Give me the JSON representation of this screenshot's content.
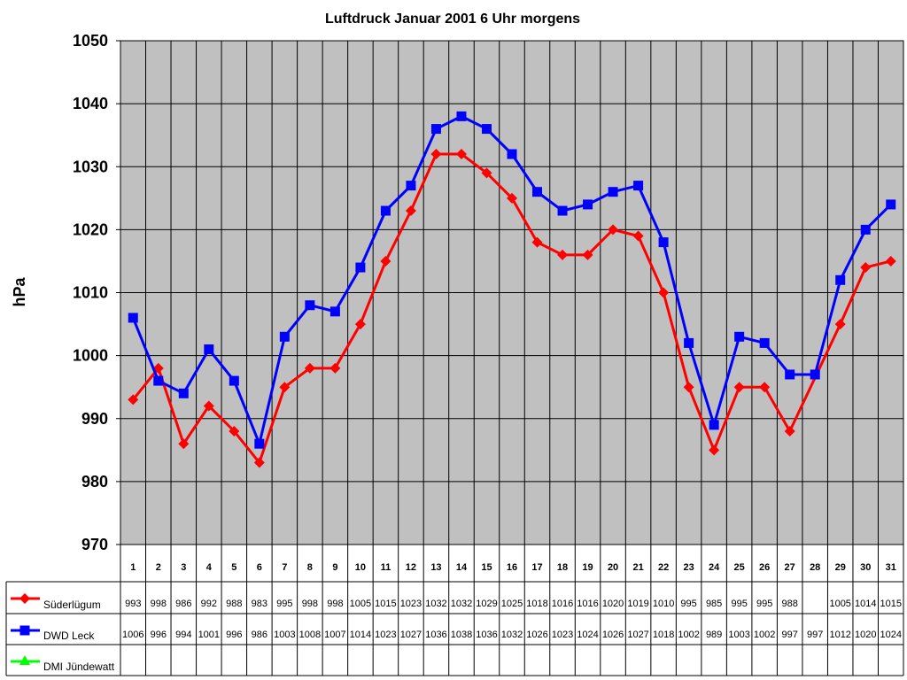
{
  "chart_data": {
    "type": "line",
    "title": "Luftdruck Januar 2001 6 Uhr morgens",
    "xlabel": "",
    "ylabel": "hPa",
    "ylim": [
      970,
      1050
    ],
    "yticks": [
      970,
      980,
      990,
      1000,
      1010,
      1020,
      1030,
      1040,
      1050
    ],
    "grid": true,
    "legend_placement": "data-table-left",
    "categories": [
      1,
      2,
      3,
      4,
      5,
      6,
      7,
      8,
      9,
      10,
      11,
      12,
      13,
      14,
      15,
      16,
      17,
      18,
      19,
      20,
      21,
      22,
      23,
      24,
      25,
      26,
      27,
      28,
      29,
      30,
      31
    ],
    "series": [
      {
        "name": "Süderlügum",
        "color": "#ff0000",
        "marker": "diamond",
        "values": [
          993,
          998,
          986,
          992,
          988,
          983,
          995,
          998,
          998,
          1005,
          1015,
          1023,
          1032,
          1032,
          1029,
          1025,
          1018,
          1016,
          1016,
          1020,
          1019,
          1010,
          995,
          985,
          995,
          995,
          988,
          null,
          1005,
          1014,
          1015
        ]
      },
      {
        "name": "DWD Leck",
        "color": "#0000ff",
        "marker": "square",
        "values": [
          1006,
          996,
          994,
          1001,
          996,
          986,
          1003,
          1008,
          1007,
          1014,
          1023,
          1027,
          1036,
          1038,
          1036,
          1032,
          1026,
          1023,
          1024,
          1026,
          1027,
          1018,
          1002,
          989,
          1003,
          1002,
          997,
          997,
          1012,
          1020,
          1024
        ]
      },
      {
        "name": "DMI Jündewatt",
        "color": "#00ff00",
        "marker": "triangle",
        "values": [
          null,
          null,
          null,
          null,
          null,
          null,
          null,
          null,
          null,
          null,
          null,
          null,
          null,
          null,
          null,
          null,
          null,
          null,
          null,
          null,
          null,
          null,
          null,
          null,
          null,
          null,
          null,
          null,
          null,
          null,
          null
        ]
      }
    ],
    "plot_background": "#c0c0c0"
  }
}
